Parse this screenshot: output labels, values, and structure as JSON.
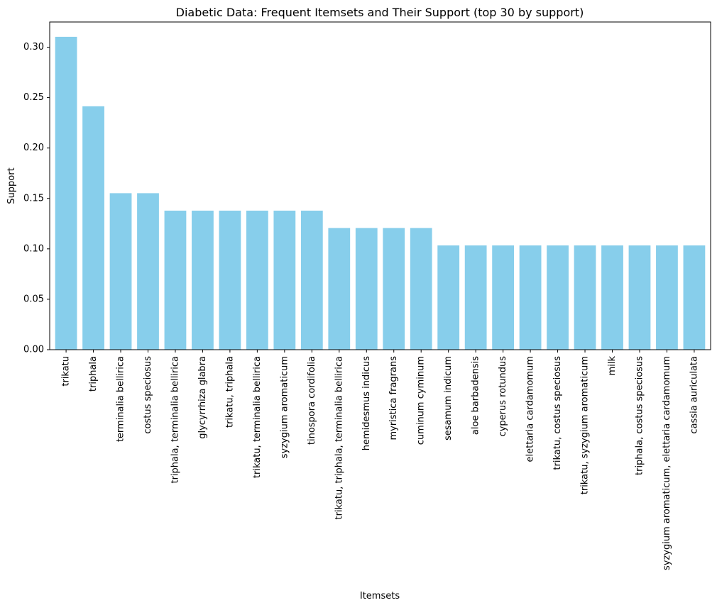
{
  "chart_data": {
    "type": "bar",
    "title": "Diabetic Data: Frequent Itemsets and Their Support (top 30 by support)",
    "xlabel": "Itemsets",
    "ylabel": "Support",
    "ylim": [
      0,
      0.325
    ],
    "yticks": [
      0.0,
      0.05,
      0.1,
      0.15,
      0.2,
      0.25,
      0.3
    ],
    "ytick_labels": [
      "0.00",
      "0.05",
      "0.10",
      "0.15",
      "0.20",
      "0.25",
      "0.30"
    ],
    "grid": false,
    "bar_color": "#87CEEB",
    "categories": [
      "trikatu",
      "triphala",
      "terminalia bellirica",
      "costus speciosus",
      "triphala, terminalia bellirica",
      "glycyrrhiza glabra",
      "trikatu, triphala",
      "trikatu, terminalia bellirica",
      "syzygium aromaticum",
      "tinospora cordifolia",
      "trikatu, triphala, terminalia bellirica",
      "hemidesmus indicus",
      "myristica fragrans",
      "cuminum cyminum",
      "sesamum indicum",
      "aloe barbadensis",
      "cyperus rotundus",
      "elettaria cardamomum",
      "trikatu, costus speciosus",
      "trikatu, syzygium aromaticum",
      "milk",
      "triphala, costus speciosus",
      "syzygium aromaticum, elettaria cardamomum",
      "cassia auriculata"
    ],
    "values": [
      0.3103,
      0.2414,
      0.1552,
      0.1552,
      0.1379,
      0.1379,
      0.1379,
      0.1379,
      0.1379,
      0.1379,
      0.1207,
      0.1207,
      0.1207,
      0.1207,
      0.1034,
      0.1034,
      0.1034,
      0.1034,
      0.1034,
      0.1034,
      0.1034,
      0.1034,
      0.1034,
      0.1034
    ]
  }
}
